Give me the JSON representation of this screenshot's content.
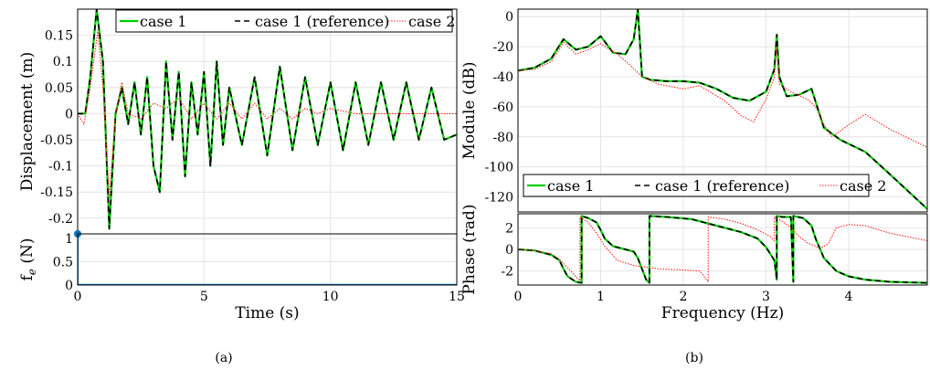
{
  "captions": {
    "a": "(a)",
    "b": "(b)"
  },
  "colors": {
    "case1": "#00cc00",
    "case1_ref": "#000000",
    "case2": "#ff2222",
    "force": "#0072bd"
  },
  "chart_data": [
    {
      "id": "a-top",
      "type": "line",
      "xlabel": "",
      "ylabel": "Displacement (m)",
      "xlim": [
        0,
        15
      ],
      "ylim": [
        -0.23,
        0.2
      ],
      "y_ticks": [
        -0.2,
        -0.15,
        -0.1,
        -0.05,
        0,
        0.05,
        0.1,
        0.15
      ],
      "y_tick_labels": [
        "-0.2",
        "-0.15",
        "-0.1",
        "-0.05",
        "0",
        "0.05",
        "0.1",
        "0.15"
      ],
      "grid": true,
      "legend": {
        "position": "top-right",
        "entries": [
          "case 1",
          "case 1 (reference)",
          "case 2"
        ]
      },
      "series": [
        {
          "name": "case 1",
          "style": "solid-green",
          "x": [
            0,
            0.3,
            0.5,
            0.75,
            1.0,
            1.25,
            1.5,
            1.75,
            2.0,
            2.25,
            2.5,
            2.75,
            3.0,
            3.25,
            3.5,
            3.75,
            4.0,
            4.25,
            4.5,
            4.75,
            5.0,
            5.25,
            5.5,
            5.75,
            6.0,
            6.5,
            7.0,
            7.5,
            8.0,
            8.5,
            9.0,
            9.5,
            10.0,
            10.5,
            11.0,
            11.5,
            12.0,
            12.5,
            13.0,
            13.5,
            14.0,
            14.5,
            15.0
          ],
          "values": [
            0,
            0,
            0.07,
            0.2,
            0.1,
            -0.22,
            0,
            0.05,
            -0.02,
            0.06,
            -0.04,
            0.07,
            -0.1,
            -0.15,
            0.1,
            -0.05,
            0.08,
            -0.12,
            0.06,
            -0.04,
            0.08,
            -0.1,
            0.1,
            -0.06,
            0.05,
            -0.06,
            0.07,
            -0.08,
            0.09,
            -0.07,
            0.07,
            -0.06,
            0.06,
            -0.07,
            0.06,
            -0.06,
            0.06,
            -0.05,
            0.06,
            -0.05,
            0.05,
            -0.05,
            -0.04
          ]
        },
        {
          "name": "case 1 (reference)",
          "style": "dashed-black",
          "x": [
            0,
            0.3,
            0.5,
            0.75,
            1.0,
            1.25,
            1.5,
            1.75,
            2.0,
            2.25,
            2.5,
            2.75,
            3.0,
            3.25,
            3.5,
            3.75,
            4.0,
            4.25,
            4.5,
            4.75,
            5.0,
            5.25,
            5.5,
            5.75,
            6.0,
            6.5,
            7.0,
            7.5,
            8.0,
            8.5,
            9.0,
            9.5,
            10.0,
            10.5,
            11.0,
            11.5,
            12.0,
            12.5,
            13.0,
            13.5,
            14.0,
            14.5,
            15.0
          ],
          "values": [
            0,
            0,
            0.07,
            0.2,
            0.1,
            -0.22,
            0,
            0.05,
            -0.02,
            0.06,
            -0.04,
            0.07,
            -0.1,
            -0.15,
            0.1,
            -0.05,
            0.08,
            -0.12,
            0.06,
            -0.04,
            0.08,
            -0.1,
            0.1,
            -0.06,
            0.05,
            -0.06,
            0.07,
            -0.08,
            0.09,
            -0.07,
            0.07,
            -0.06,
            0.06,
            -0.07,
            0.06,
            -0.06,
            0.06,
            -0.05,
            0.06,
            -0.05,
            0.05,
            -0.05,
            -0.04
          ]
        },
        {
          "name": "case 2",
          "style": "dotted-red",
          "x": [
            0,
            0.25,
            0.5,
            0.8,
            1.0,
            1.25,
            1.5,
            1.75,
            2.0,
            2.5,
            3.0,
            3.5,
            4.0,
            4.5,
            5.0,
            5.5,
            6.0,
            6.5,
            7.0,
            7.5,
            8.0,
            8.5,
            9.0,
            9.5,
            10.0,
            11.0,
            12.0,
            13.0,
            14.0,
            15.0
          ],
          "values": [
            0,
            -0.02,
            0.05,
            0.16,
            0.05,
            -0.16,
            0.0,
            0.06,
            0.0,
            -0.01,
            0.02,
            0.01,
            0.03,
            -0.01,
            0.02,
            -0.01,
            0.02,
            -0.01,
            0.02,
            -0.01,
            0.01,
            -0.01,
            0.01,
            0.0,
            0.01,
            0.0,
            0.0,
            0.0,
            0.0,
            0.0
          ]
        }
      ]
    },
    {
      "id": "a-bottom",
      "type": "line",
      "xlabel": "Time (s)",
      "ylabel": "f_e (N)",
      "xlim": [
        0,
        15
      ],
      "ylim": [
        0,
        1.1
      ],
      "x_ticks": [
        0,
        5,
        10,
        15
      ],
      "x_tick_labels": [
        "0",
        "5",
        "10",
        "15"
      ],
      "y_ticks": [
        0,
        0.5,
        1
      ],
      "y_tick_labels": [
        "0",
        "0.5",
        "1"
      ],
      "grid": true,
      "series": [
        {
          "name": "",
          "style": "stem-blue",
          "x": [
            0,
            0.02,
            15
          ],
          "values": [
            1.1,
            0,
            0
          ]
        }
      ]
    },
    {
      "id": "b-top",
      "type": "line",
      "xlabel": "",
      "ylabel": "Module (dB)",
      "xlim": [
        0,
        4.95
      ],
      "ylim": [
        -130,
        5
      ],
      "y_ticks": [
        -120,
        -100,
        -80,
        -60,
        -40,
        -20,
        0
      ],
      "y_tick_labels": [
        "-120",
        "-100",
        "-80",
        "-60",
        "-40",
        "-20",
        "0"
      ],
      "grid": true,
      "legend": {
        "position": "bottom-right",
        "entries": [
          "case 1",
          "case 1 (reference)",
          "case 2"
        ]
      },
      "series": [
        {
          "name": "case 1",
          "style": "solid-green",
          "x": [
            0,
            0.2,
            0.4,
            0.55,
            0.7,
            0.85,
            1.0,
            1.15,
            1.3,
            1.4,
            1.45,
            1.5,
            1.6,
            1.8,
            2.0,
            2.2,
            2.4,
            2.6,
            2.8,
            3.0,
            3.1,
            3.13,
            3.16,
            3.25,
            3.4,
            3.55,
            3.7,
            3.9,
            4.2,
            4.5,
            4.95
          ],
          "values": [
            -36,
            -34,
            -28,
            -15,
            -22,
            -20,
            -13,
            -24,
            -25,
            -15,
            5,
            -40,
            -42,
            -43,
            -43,
            -44,
            -48,
            -54,
            -56,
            -50,
            -35,
            -12,
            -40,
            -53,
            -52,
            -48,
            -74,
            -82,
            -90,
            -105,
            -128
          ]
        },
        {
          "name": "case 1 (reference)",
          "style": "dashed-black",
          "x": [
            0,
            0.2,
            0.4,
            0.55,
            0.7,
            0.85,
            1.0,
            1.15,
            1.3,
            1.4,
            1.45,
            1.5,
            1.6,
            1.8,
            2.0,
            2.2,
            2.4,
            2.6,
            2.8,
            3.0,
            3.1,
            3.13,
            3.16,
            3.25,
            3.4,
            3.55,
            3.7,
            3.9,
            4.2,
            4.5,
            4.95
          ],
          "values": [
            -36,
            -34,
            -28,
            -15,
            -22,
            -20,
            -13,
            -24,
            -25,
            -15,
            5,
            -40,
            -42,
            -43,
            -43,
            -44,
            -48,
            -54,
            -56,
            -50,
            -35,
            -12,
            -40,
            -53,
            -52,
            -48,
            -74,
            -82,
            -90,
            -105,
            -128
          ]
        },
        {
          "name": "case 2",
          "style": "dotted-red",
          "x": [
            0,
            0.2,
            0.4,
            0.5,
            0.55,
            0.7,
            0.85,
            1.0,
            1.2,
            1.35,
            1.5,
            1.7,
            2.0,
            2.2,
            2.5,
            2.7,
            2.85,
            3.0,
            3.1,
            3.13,
            3.16,
            3.3,
            3.5,
            3.6,
            3.7,
            3.8,
            4.0,
            4.2,
            4.5,
            4.95
          ],
          "values": [
            -36,
            -35,
            -30,
            -22,
            -17,
            -25,
            -22,
            -18,
            -25,
            -32,
            -40,
            -45,
            -48,
            -46,
            -56,
            -66,
            -70,
            -55,
            -40,
            -20,
            -45,
            -50,
            -55,
            -60,
            -72,
            -80,
            -72,
            -65,
            -75,
            -87
          ]
        }
      ]
    },
    {
      "id": "b-bottom",
      "type": "line",
      "xlabel": "Frequency (Hz)",
      "ylabel": "Phase (rad)",
      "xlim": [
        0,
        4.95
      ],
      "ylim": [
        -3.3,
        3.3
      ],
      "x_ticks": [
        0,
        1,
        2,
        3,
        4
      ],
      "x_tick_labels": [
        "0",
        "1",
        "2",
        "3",
        "4"
      ],
      "y_ticks": [
        -2,
        0,
        2
      ],
      "y_tick_labels": [
        "-2",
        "0",
        "2"
      ],
      "grid": true,
      "series": [
        {
          "name": "case 1",
          "style": "solid-green",
          "x": [
            0,
            0.2,
            0.4,
            0.5,
            0.55,
            0.6,
            0.7,
            0.77,
            0.77,
            0.85,
            0.95,
            1.0,
            1.05,
            1.15,
            1.3,
            1.4,
            1.45,
            1.55,
            1.59,
            1.59,
            1.8,
            2.1,
            2.4,
            2.7,
            2.9,
            3.0,
            3.1,
            3.13,
            3.13,
            3.2,
            3.3,
            3.33,
            3.33,
            3.45,
            3.55,
            3.6,
            3.7,
            3.85,
            4.0,
            4.2,
            4.5,
            4.95
          ],
          "values": [
            0,
            -0.1,
            -0.5,
            -1.0,
            -1.8,
            -2.5,
            -3.0,
            -3.1,
            3.1,
            2.9,
            2.5,
            1.8,
            1.0,
            0.3,
            0,
            -0.2,
            -0.8,
            -2.8,
            -3.1,
            3.1,
            3.0,
            2.8,
            2.2,
            1.6,
            1.0,
            0.2,
            -1.0,
            -2.8,
            3.1,
            3.0,
            3.0,
            -3.0,
            3.1,
            2.9,
            2.2,
            1.0,
            -0.8,
            -2.0,
            -2.5,
            -2.8,
            -3.0,
            -3.1
          ]
        },
        {
          "name": "case 1 (reference)",
          "style": "dashed-black",
          "x": [
            0,
            0.2,
            0.4,
            0.5,
            0.55,
            0.6,
            0.7,
            0.77,
            0.77,
            0.85,
            0.95,
            1.0,
            1.05,
            1.15,
            1.3,
            1.4,
            1.45,
            1.55,
            1.59,
            1.59,
            1.8,
            2.1,
            2.4,
            2.7,
            2.9,
            3.0,
            3.1,
            3.13,
            3.13,
            3.2,
            3.3,
            3.33,
            3.33,
            3.45,
            3.55,
            3.6,
            3.7,
            3.85,
            4.0,
            4.2,
            4.5,
            4.95
          ],
          "values": [
            0,
            -0.1,
            -0.5,
            -1.0,
            -1.8,
            -2.5,
            -3.0,
            -3.1,
            3.1,
            2.9,
            2.5,
            1.8,
            1.0,
            0.3,
            0,
            -0.2,
            -0.8,
            -2.8,
            -3.1,
            3.1,
            3.0,
            2.8,
            2.2,
            1.6,
            1.0,
            0.2,
            -1.0,
            -2.8,
            3.1,
            3.0,
            3.0,
            -3.0,
            3.1,
            2.9,
            2.2,
            1.0,
            -0.8,
            -2.0,
            -2.5,
            -2.8,
            -3.0,
            -3.1
          ]
        },
        {
          "name": "case 2",
          "style": "dotted-red",
          "x": [
            0,
            0.2,
            0.4,
            0.5,
            0.6,
            0.75,
            0.75,
            0.85,
            0.95,
            1.05,
            1.2,
            1.4,
            1.7,
            2.0,
            2.2,
            2.3,
            2.3,
            2.5,
            2.7,
            2.9,
            3.05,
            3.1,
            3.1,
            3.2,
            3.3,
            3.4,
            3.5,
            3.6,
            3.65,
            3.75,
            3.85,
            4.0,
            4.2,
            4.5,
            4.95
          ],
          "values": [
            0,
            -0.1,
            -0.4,
            -0.9,
            -1.7,
            -2.9,
            3.0,
            2.5,
            1.5,
            0.3,
            -1.0,
            -1.5,
            -1.8,
            -1.9,
            -2.0,
            -3.0,
            3.0,
            2.8,
            2.4,
            1.8,
            1.2,
            0.8,
            3.0,
            2.6,
            2.0,
            1.2,
            0.6,
            0.3,
            0.1,
            0.5,
            2.0,
            2.3,
            2.2,
            1.5,
            0.8
          ]
        }
      ]
    }
  ]
}
